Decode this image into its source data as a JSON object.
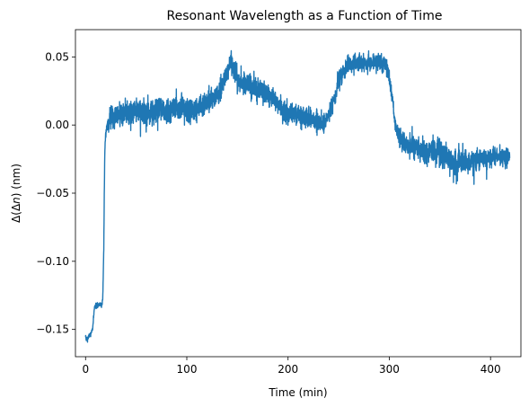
{
  "chart_data": {
    "type": "line",
    "title": "Resonant Wavelength as a Function of Time",
    "xlabel": "Time (min)",
    "ylabel_parts": [
      "Δ(Δ",
      "n",
      ") (nm)"
    ],
    "xlim": [
      -10,
      430
    ],
    "ylim": [
      -0.17,
      0.07
    ],
    "grid": false,
    "x_ticks": [
      0,
      100,
      200,
      300,
      400
    ],
    "x_tick_labels": [
      "0",
      "100",
      "200",
      "300",
      "400"
    ],
    "y_ticks": [
      -0.15,
      -0.1,
      -0.05,
      0.0,
      0.05
    ],
    "y_tick_labels": [
      "−0.15",
      "−0.10",
      "−0.05",
      "0.00",
      "0.05"
    ],
    "colors": {
      "series": "#1f77b4",
      "axes": "#000000"
    },
    "series": [
      {
        "x": [
          0,
          2,
          4,
          6,
          7,
          8,
          9,
          10,
          12,
          14,
          16,
          17,
          18,
          18.5,
          19,
          19.5,
          20,
          20.5,
          21,
          22,
          25,
          30,
          40,
          50,
          60,
          70,
          80,
          90,
          100,
          110,
          120,
          130,
          135,
          140,
          143,
          146,
          150,
          160,
          170,
          180,
          190,
          195,
          200,
          210,
          220,
          230,
          235,
          240,
          245,
          250,
          255,
          260,
          270,
          280,
          290,
          297,
          300,
          303,
          306,
          309,
          312,
          320,
          330,
          340,
          350,
          360,
          370,
          380,
          390,
          400,
          410,
          419
        ],
        "y": [
          -0.156,
          -0.157,
          -0.154,
          -0.152,
          -0.15,
          -0.14,
          -0.134,
          -0.133,
          -0.133,
          -0.132,
          -0.132,
          -0.128,
          -0.09,
          -0.05,
          -0.02,
          -0.01,
          -0.006,
          -0.004,
          -0.002,
          0.0,
          0.005,
          0.008,
          0.008,
          0.01,
          0.008,
          0.01,
          0.01,
          0.012,
          0.011,
          0.012,
          0.016,
          0.022,
          0.03,
          0.038,
          0.046,
          0.042,
          0.032,
          0.03,
          0.026,
          0.022,
          0.016,
          0.01,
          0.01,
          0.008,
          0.006,
          0.003,
          0.0,
          0.008,
          0.018,
          0.032,
          0.04,
          0.044,
          0.046,
          0.045,
          0.046,
          0.044,
          0.036,
          0.02,
          0.0,
          -0.008,
          -0.012,
          -0.015,
          -0.018,
          -0.02,
          -0.02,
          -0.026,
          -0.028,
          -0.027,
          -0.025,
          -0.024,
          -0.022,
          -0.022
        ],
        "noise": [
          0.002,
          0.002,
          0.002,
          0.002,
          0.002,
          0.002,
          0.002,
          0.002,
          0.002,
          0.002,
          0.002,
          0.002,
          0.002,
          0.002,
          0.002,
          0.002,
          0.003,
          0.004,
          0.005,
          0.006,
          0.007,
          0.008,
          0.008,
          0.008,
          0.008,
          0.008,
          0.008,
          0.008,
          0.008,
          0.008,
          0.008,
          0.008,
          0.008,
          0.007,
          0.006,
          0.006,
          0.007,
          0.007,
          0.007,
          0.007,
          0.007,
          0.007,
          0.007,
          0.007,
          0.007,
          0.007,
          0.006,
          0.006,
          0.006,
          0.006,
          0.006,
          0.006,
          0.006,
          0.006,
          0.006,
          0.006,
          0.005,
          0.004,
          0.004,
          0.006,
          0.008,
          0.008,
          0.008,
          0.009,
          0.01,
          0.01,
          0.009,
          0.008,
          0.007,
          0.007,
          0.007,
          0.006
        ]
      }
    ]
  }
}
